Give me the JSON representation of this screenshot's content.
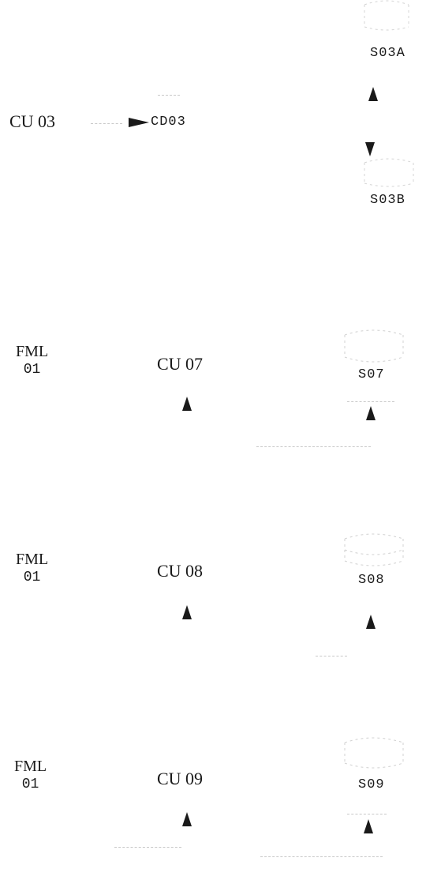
{
  "rows": [
    {
      "left_label": "CU 03",
      "middle_label": "CD03",
      "top_label": "S03A",
      "bottom_label": "S03B"
    },
    {
      "fml_line1": "FML",
      "fml_line2": "01",
      "cu_label": "CU 07",
      "s_label": "S07"
    },
    {
      "fml_line1": "FML",
      "fml_line2": "01",
      "cu_label": "CU 08",
      "s_label": "S08"
    },
    {
      "fml_line1": "FML",
      "fml_line2": "01",
      "cu_label": "CU 09",
      "s_label": "S09"
    }
  ],
  "colors": {
    "ink": "#1a1a1a",
    "faint": "#c8c8c8"
  }
}
